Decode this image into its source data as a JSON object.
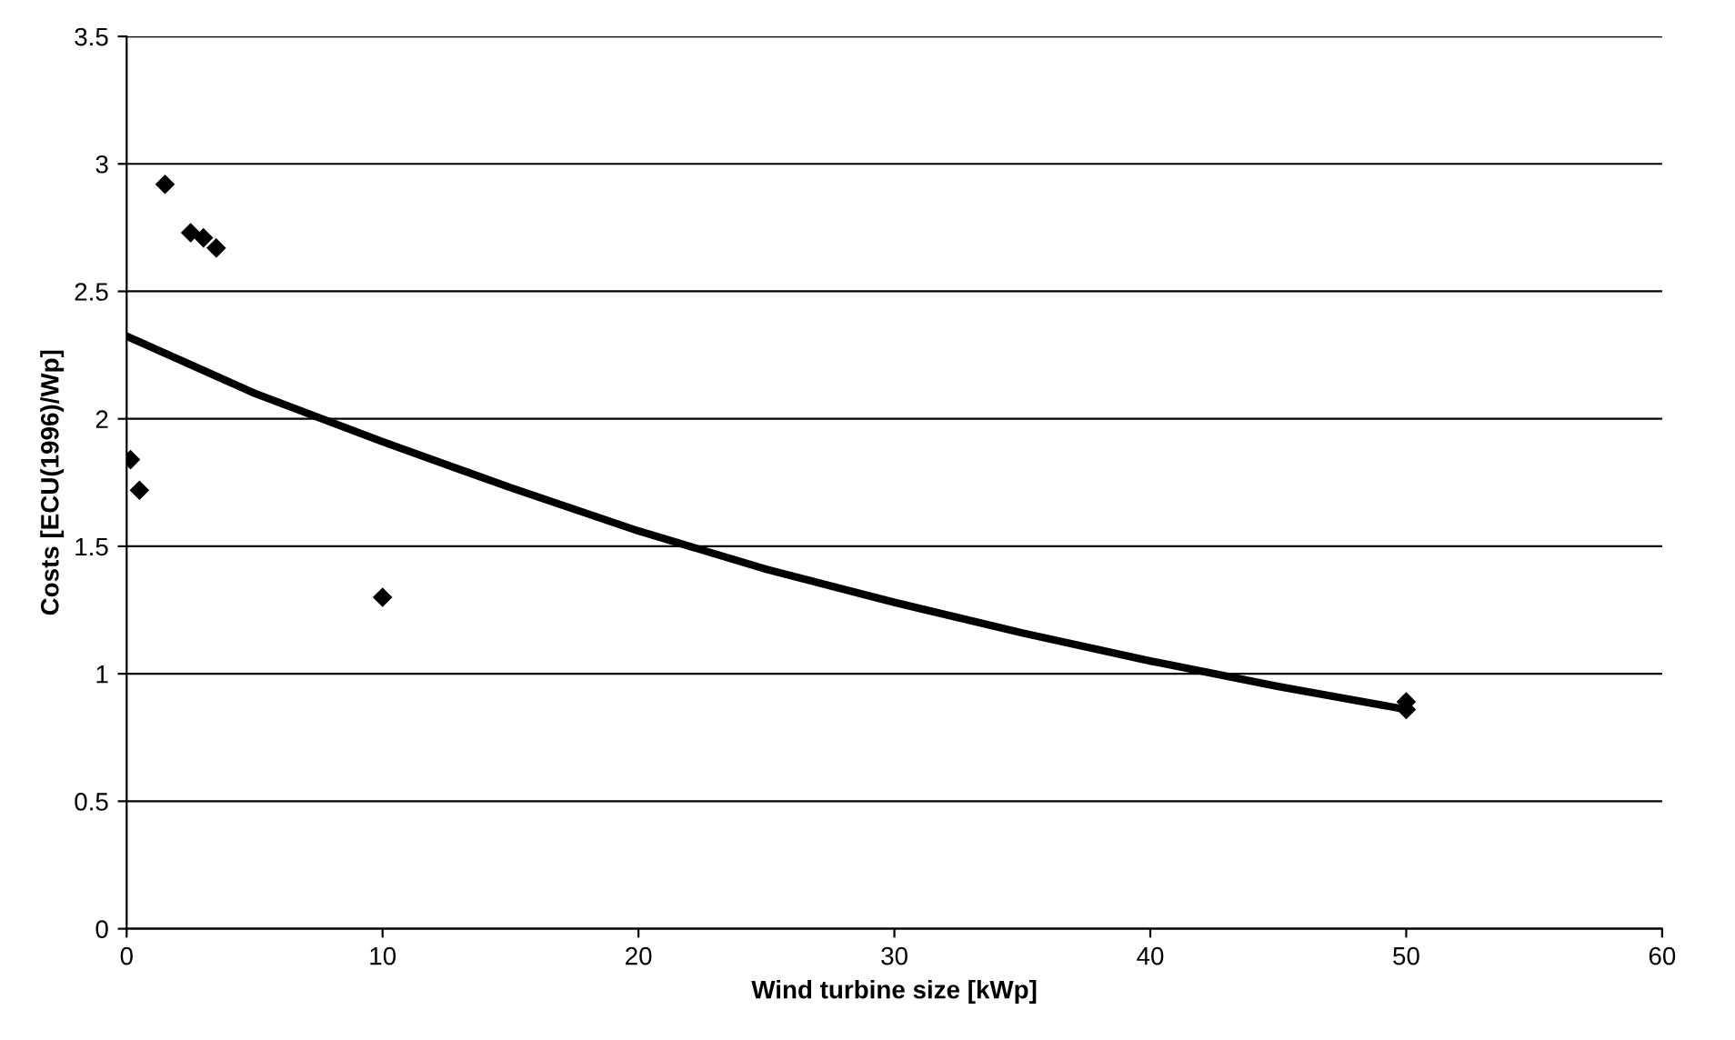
{
  "chart_data": {
    "type": "scatter",
    "xlabel": "Wind turbine size [kWp]",
    "ylabel": "Costs [ECU(1996)/Wp]",
    "xlim": [
      0,
      60
    ],
    "xticks": [
      0,
      10,
      20,
      30,
      40,
      50,
      60
    ],
    "ylim": [
      0,
      3.5
    ],
    "yticks": [
      0,
      0.5,
      1,
      1.5,
      2,
      2.5,
      3,
      3.5
    ],
    "grid": "y",
    "marker": "diamond",
    "series": [
      {
        "color": "#000000",
        "x": [
          0.15,
          0.5,
          1.5,
          2.5,
          3.0,
          3.5,
          10,
          50,
          50
        ],
        "values": [
          1.84,
          1.72,
          2.92,
          2.73,
          2.71,
          2.67,
          1.3,
          0.89,
          0.86
        ]
      },
      {
        "type": "line",
        "color": "#000000",
        "marker": "none",
        "line_style": "solid",
        "x": [
          0.1,
          5,
          10,
          15,
          20,
          25,
          30,
          35,
          40,
          45,
          50
        ],
        "values": [
          2.32,
          2.1,
          1.91,
          1.73,
          1.56,
          1.41,
          1.28,
          1.16,
          1.05,
          0.95,
          0.86
        ]
      }
    ]
  }
}
